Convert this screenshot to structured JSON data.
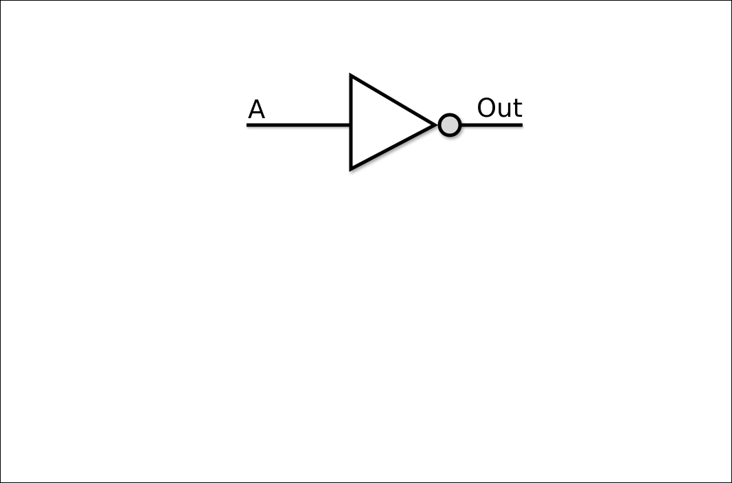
{
  "diagram": {
    "type": "logic-gate",
    "gate": "NOT",
    "input_label": "A",
    "output_label": "Out",
    "colors": {
      "stroke": "#000000",
      "gate_fill": "#ffffff",
      "bubble_fill": "#d9d9d9",
      "background": "#ffffff"
    }
  }
}
